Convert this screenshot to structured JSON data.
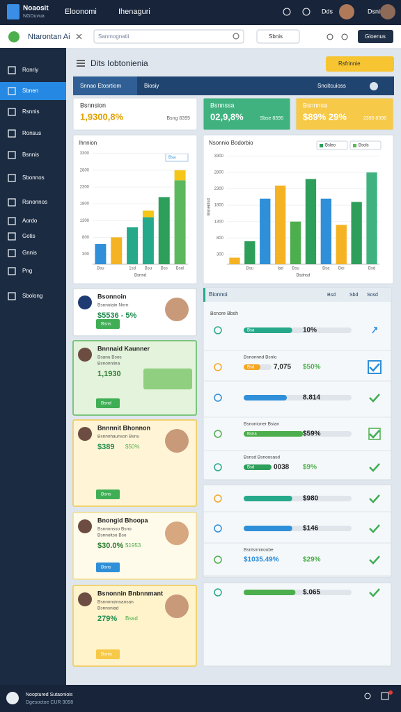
{
  "topbar": {
    "brand": [
      "Noaosit",
      "NGDuvua"
    ],
    "nav": [
      "Eloonomi",
      "Ihenaguri"
    ],
    "link": "Dds",
    "user": "Dsnis"
  },
  "toolbar": {
    "title": "Ntarontan Ai",
    "search": "Sanmognatii",
    "select": "Sbnis",
    "button": "Gloenus"
  },
  "sidebar": {
    "items": [
      "Ronriy",
      "Sbnen",
      "Rsnnis",
      "Ronsus",
      "Bsnnis",
      "Sbonnos",
      "Rsnonnos",
      "Aordo",
      "Gotis",
      "Gnnis",
      "Png",
      "Sbolong"
    ],
    "active": 1
  },
  "header": {
    "title": "Dits Iobtonienia",
    "button": "Rsfrinnie"
  },
  "tabs": {
    "items": [
      "Snnao Etosrtiom",
      "Biosiy"
    ],
    "right": "Snoitcuioss",
    "active": 0
  },
  "kpis": [
    {
      "label": "Bsnnsion",
      "value": "1,9300,8%",
      "note": "Bsng 8395",
      "color": "#ffffff",
      "value_color": "#e0a000"
    },
    {
      "label": "Bsnnssa",
      "value": "02,9,8%",
      "note": "Sbse 8395",
      "color": "#3fb27f",
      "value_color": "#ffffff"
    },
    {
      "label": "Bsnnnsa",
      "value": "$89% 29%",
      "note": "2390 8396",
      "color": "#f7c948",
      "value_color": "#ffffff"
    }
  ],
  "charts": [
    {
      "type": "bar",
      "title": "Ihnnion",
      "badge": "Bsa",
      "x_label": "Bsnnd",
      "categories": [
        "Bsu",
        null,
        "1sd",
        "Bsu",
        "Bss",
        "Bsul"
      ],
      "values": [
        600,
        800,
        1100,
        1400,
        2000,
        2500
      ],
      "colors": [
        "#2f8fd8",
        "#f5b324",
        "#26a98b",
        "#26a98b",
        "#2e9e5b",
        "#5cb85c"
      ],
      "stack_values": [
        null,
        null,
        null,
        200,
        null,
        300
      ],
      "stack_color": "#f5c518",
      "ylim": [
        0,
        3500
      ],
      "yticks": [
        300,
        800,
        1300,
        1800,
        2300,
        2800,
        3300
      ],
      "grid": true
    },
    {
      "type": "bar",
      "title": "Nsonnio Bodorbio",
      "y_label": "Bsnenlsd",
      "x_label": "Bsdnsd",
      "legend": [
        {
          "name": "Bsleo",
          "color": "#2e9e5b"
        },
        {
          "name": "Bsols",
          "color": "#5cb85c"
        }
      ],
      "categories": [
        null,
        "Bsu",
        null,
        "Iad",
        "Bsu",
        null,
        "Bsa",
        "Boi",
        null,
        "Bsd"
      ],
      "values": [
        200,
        700,
        2000,
        2400,
        1300,
        2600,
        2000,
        1200,
        1900,
        2800
      ],
      "colors": [
        "#f5b324",
        "#2e9e5b",
        "#2f8fd8",
        "#f5b324",
        "#4cae4c",
        "#2e9e5b",
        "#2f8fd8",
        "#f5b324",
        "#2e9e5b",
        "#3fb27f"
      ],
      "ylim": [
        0,
        3500
      ],
      "yticks": [
        300,
        800,
        1300,
        1800,
        2300,
        2800,
        3300
      ],
      "grid": true
    }
  ],
  "profiles": [
    {
      "name": "Bsonnoin",
      "lines": [
        "Bsnnoiain Nnrn"
      ],
      "value": "$5536 - 5%",
      "button": "Bsns",
      "bg": "#ffffff",
      "border": "#d6dde4"
    },
    {
      "name": "Bnnnaid Kaunner",
      "lines": [
        "Bsanu Bsos",
        "Bsnonniina"
      ],
      "value": "1,1930",
      "button": "Bsnd",
      "bg": "#e4f3dc",
      "border": "#5cb85c"
    },
    {
      "name": "Bnnnnit Bhonnon",
      "lines": [
        "Bsnnnhaunson Bsnu"
      ],
      "value": "$389",
      "value2": "$50%",
      "button": "Bsns",
      "bg": "#fff5d6",
      "border": "#f2c94c"
    },
    {
      "name": "Bnongid Bhoopa",
      "lines": [
        "Bsnnnnsso Bsno",
        "Bsnnoitso Bso"
      ],
      "value": "$30.0%",
      "value2": "$1953",
      "button": "Bsns",
      "bg": "#fffbea",
      "border": "#f2dc8a"
    },
    {
      "name": "Bsnonnin Bnbnnmant",
      "lines": [
        "Bsnnnnoinsansan",
        "Bsnnsniad"
      ],
      "value": "279%",
      "value2": "Bssd",
      "button": "Bsnis",
      "bg": "#fff3cc",
      "border": "#f2c94c"
    }
  ],
  "tasks": {
    "header": "Bionnoi",
    "header_right": [
      "Bsd",
      "Sbd",
      "Sosd"
    ],
    "section": "Bsnore Bbsh",
    "rows": [
      {
        "bar_text": "Bsa",
        "progress": 45,
        "color": "#26a98b",
        "value": "10%",
        "check": "arrow"
      },
      {
        "label": "Bsnonnnd Bsnlo",
        "bar_text": "Bsd",
        "progress": 60,
        "color": "#f5a623",
        "value": "7,075",
        "value2": "$50%",
        "check": "box"
      },
      {
        "progress": 40,
        "color": "#2f8fd8",
        "value": "8.814",
        "check": "solid"
      },
      {
        "label": "Bsnonioner Bsian",
        "bar_text": "Bsna",
        "progress": 55,
        "color": "#4cae4c",
        "value": "$59%",
        "check": "outline"
      },
      {
        "label": "Bsnsd Bsnoosasd",
        "bar_text": "Bsd",
        "progress": 100,
        "color": "#2e9e5b",
        "value": "0038",
        "value2": "$9%",
        "check": "solid"
      },
      {
        "progress": 45,
        "color": "#26a98b",
        "value": "$980",
        "check": "solid"
      },
      {
        "progress": 45,
        "color": "#2f8fd8",
        "value": "$146",
        "check": "solid"
      },
      {
        "label": "Bsnlsnninoobe",
        "progress": null,
        "value": "$1035.49%",
        "value2": "$29%",
        "check": "solid"
      },
      {
        "progress": 48,
        "color": "#4cae4c",
        "value": "$.065",
        "check": "solid"
      }
    ]
  },
  "footer": {
    "line1": "Nooptured Sutaoniois",
    "line2": "Dgesoctoe CUR 3098"
  }
}
